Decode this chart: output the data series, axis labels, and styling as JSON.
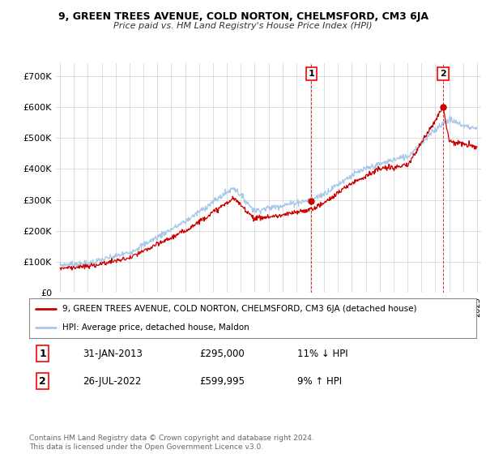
{
  "title": "9, GREEN TREES AVENUE, COLD NORTON, CHELMSFORD, CM3 6JA",
  "subtitle": "Price paid vs. HM Land Registry's House Price Index (HPI)",
  "ylabel_ticks": [
    "£0",
    "£100K",
    "£200K",
    "£300K",
    "£400K",
    "£500K",
    "£600K",
    "£700K"
  ],
  "ytick_values": [
    0,
    100000,
    200000,
    300000,
    400000,
    500000,
    600000,
    700000
  ],
  "ylim": [
    0,
    740000
  ],
  "xlim_start": 1994.7,
  "xlim_end": 2025.3,
  "hpi_color": "#a8c8e8",
  "price_color": "#cc0000",
  "marker1_x": 2013.08,
  "marker1_y": 295000,
  "marker2_x": 2022.56,
  "marker2_y": 599995,
  "legend_line1": "9, GREEN TREES AVENUE, COLD NORTON, CHELMSFORD, CM3 6JA (detached house)",
  "legend_line2": "HPI: Average price, detached house, Maldon",
  "table_row1": [
    "1",
    "31-JAN-2013",
    "£295,000",
    "11% ↓ HPI"
  ],
  "table_row2": [
    "2",
    "26-JUL-2022",
    "£599,995",
    "9% ↑ HPI"
  ],
  "footnote": "Contains HM Land Registry data © Crown copyright and database right 2024.\nThis data is licensed under the Open Government Licence v3.0.",
  "bg_color": "#ffffff",
  "grid_color": "#d0d0d0"
}
